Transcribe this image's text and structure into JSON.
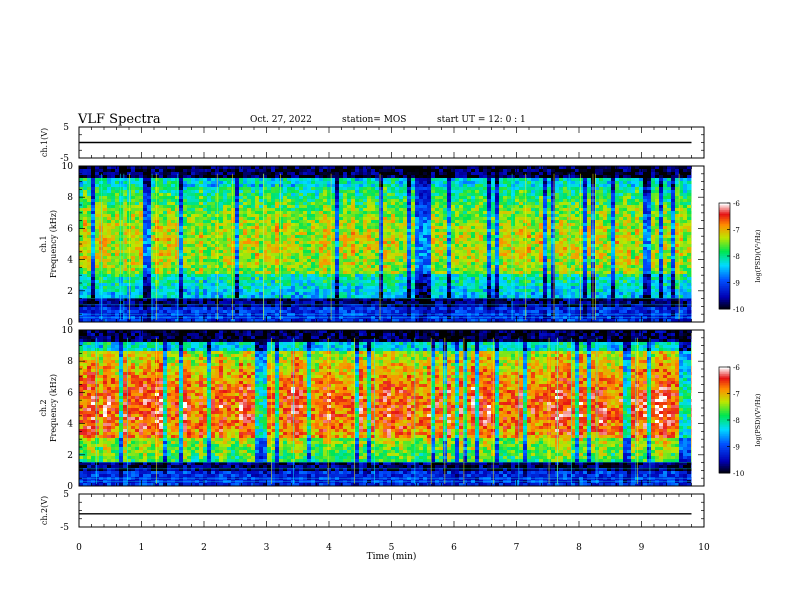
{
  "header": {
    "title": "VLF Spectra",
    "date": "Oct. 27, 2022",
    "station": "station= MOS",
    "start": "start  UT =   12: 0   : 1"
  },
  "chart_data": [
    {
      "type": "line",
      "panel": "ch1-waveform",
      "ylabel": "ch.1(V)",
      "ylim": [
        -5,
        5
      ],
      "yticks": [
        5,
        -5
      ],
      "xlim": [
        0,
        10
      ],
      "series": [
        {
          "x": [
            0,
            9.8
          ],
          "y": [
            0,
            0
          ]
        }
      ],
      "color": "#000000"
    },
    {
      "type": "heatmap",
      "panel": "ch1-spectrogram",
      "ylabel": "ch.1\nFrequency (kHz)",
      "ylabel_line1": "ch.1",
      "ylabel_line2": "Frequency (kHz)",
      "ylim": [
        0,
        10
      ],
      "yticks": [
        0,
        2,
        4,
        6,
        8,
        10
      ],
      "xlim": [
        0,
        10
      ],
      "data_extent_x": [
        0,
        9.8
      ],
      "colorbar": {
        "label": "log(PSD)(V²/Hz)",
        "range": [
          -10,
          -6
        ],
        "ticks": [
          -6,
          -7,
          -8,
          -9,
          -10
        ],
        "colormap": [
          "#ffffff",
          "#ff0000",
          "#ffff00",
          "#00ff00",
          "#00ffff",
          "#0000ff",
          "#000000"
        ]
      }
    },
    {
      "type": "heatmap",
      "panel": "ch2-spectrogram",
      "ylabel_line1": "ch.2",
      "ylabel_line2": "Frequency (kHz)",
      "ylim": [
        0,
        10
      ],
      "yticks": [
        0,
        2,
        4,
        6,
        8,
        10
      ],
      "xlim": [
        0,
        10
      ],
      "data_extent_x": [
        0,
        9.8
      ],
      "colorbar": {
        "label": "log(PSD)(V²/Hz)",
        "range": [
          -10,
          -6
        ],
        "ticks": [
          -6,
          -7,
          -8,
          -9,
          -10
        ]
      }
    },
    {
      "type": "line",
      "panel": "ch2-waveform",
      "ylabel": "ch.2(V)",
      "ylim": [
        -5,
        5
      ],
      "yticks": [
        5,
        -5
      ],
      "xlim": [
        0,
        10
      ],
      "xlabel": "Time  (min)",
      "xticks": [
        0,
        1,
        2,
        3,
        4,
        5,
        6,
        7,
        8,
        9,
        10
      ],
      "series": [
        {
          "x": [
            0,
            9.8
          ],
          "y": [
            -1,
            -1
          ]
        }
      ],
      "color": "#000000"
    }
  ]
}
